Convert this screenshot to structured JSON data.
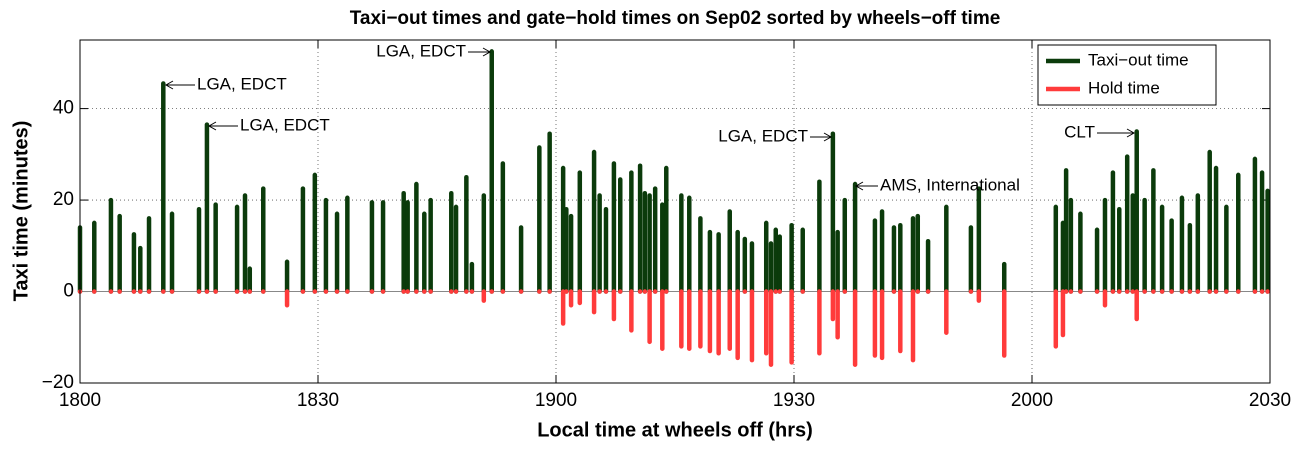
{
  "chart_data": {
    "type": "bar",
    "title": "Taxi−out times and gate−hold times on Sep02 sorted by wheels−off time",
    "x_label": "Local time at wheels off (hrs)",
    "y_label": "Taxi time (minutes)",
    "xlim": [
      1080,
      1230
    ],
    "xticks": [
      {
        "value": 1080,
        "label": "1800"
      },
      {
        "value": 1110,
        "label": "1830"
      },
      {
        "value": 1140,
        "label": "1900"
      },
      {
        "value": 1170,
        "label": "1930"
      },
      {
        "value": 1200,
        "label": "2000"
      },
      {
        "value": 1230,
        "label": "2030"
      }
    ],
    "ylim": [
      -20,
      55
    ],
    "yticks": [
      {
        "value": -20,
        "label": "−20"
      },
      0,
      20,
      40
    ],
    "grid": true,
    "legend": "northeast",
    "x": [
      1080.0,
      1081.8,
      1083.9,
      1085.0,
      1086.8,
      1087.6,
      1088.7,
      1090.5,
      1091.6,
      1095.0,
      1096.0,
      1097.1,
      1099.8,
      1100.8,
      1101.4,
      1103.1,
      1106.1,
      1108.1,
      1109.6,
      1111.0,
      1112.4,
      1113.7,
      1116.8,
      1118.2,
      1120.8,
      1121.3,
      1122.4,
      1123.4,
      1124.2,
      1126.8,
      1127.4,
      1128.7,
      1129.4,
      1130.9,
      1131.9,
      1133.3,
      1135.6,
      1137.9,
      1139.2,
      1140.9,
      1141.3,
      1141.9,
      1143.0,
      1144.8,
      1145.5,
      1146.3,
      1147.3,
      1148.1,
      1149.5,
      1150.6,
      1151.2,
      1151.8,
      1152.5,
      1153.4,
      1153.9,
      1155.8,
      1156.8,
      1158.2,
      1159.4,
      1160.5,
      1161.9,
      1162.9,
      1163.8,
      1164.7,
      1166.5,
      1167.1,
      1167.7,
      1168.2,
      1169.7,
      1171.1,
      1173.2,
      1174.9,
      1175.5,
      1176.4,
      1177.7,
      1180.2,
      1181.1,
      1182.6,
      1183.4,
      1185.0,
      1185.6,
      1186.9,
      1189.2,
      1192.3,
      1193.3,
      1196.5,
      1203.0,
      1203.9,
      1204.3,
      1204.9,
      1206.1,
      1208.2,
      1209.2,
      1210.2,
      1211.0,
      1212.0,
      1212.7,
      1213.2,
      1214.2,
      1215.3,
      1216.4,
      1217.6,
      1218.9,
      1219.9,
      1220.9,
      1222.4,
      1223.2,
      1224.5,
      1226.0,
      1228.1,
      1229.0,
      1229.7
    ],
    "series": [
      {
        "name": "Taxi−out time",
        "color": "#0b3b0b",
        "values": [
          14,
          15,
          20,
          16.5,
          12.5,
          9.5,
          16,
          45.5,
          17,
          18,
          36.5,
          19,
          18.5,
          21,
          5,
          22.5,
          6.5,
          22.5,
          25.5,
          20,
          17,
          20.5,
          19.5,
          19.5,
          21.5,
          19.5,
          23.5,
          17,
          20,
          21.5,
          18.5,
          25,
          6,
          21,
          52.5,
          28,
          14,
          31.5,
          34.5,
          27,
          18,
          16.5,
          26,
          30.5,
          21,
          18,
          28,
          24.5,
          26,
          27.5,
          21.5,
          21,
          22.5,
          19,
          27,
          21,
          20.5,
          16,
          13,
          12.5,
          17.5,
          13,
          11.5,
          10.5,
          15,
          10.5,
          13.5,
          12,
          14.5,
          13.5,
          24,
          34.5,
          13,
          20,
          23.5,
          15.5,
          17.5,
          14,
          14.5,
          16,
          16.5,
          11,
          18.5,
          14,
          22.5,
          6,
          18.5,
          15,
          26.5,
          20,
          17,
          13.5,
          20,
          26,
          18,
          29.5,
          21,
          35,
          20,
          26.5,
          18.5,
          15.5,
          20.5,
          14.5,
          21,
          30.5,
          27,
          18.5,
          25.5,
          29,
          26,
          22
        ]
      },
      {
        "name": "Hold time",
        "color": "#ff3b3b",
        "values": [
          0,
          0,
          0,
          0,
          0,
          0,
          0,
          0,
          0,
          0,
          0,
          0,
          0,
          0,
          0,
          0,
          -3,
          0,
          0,
          0,
          0,
          0,
          0,
          0,
          0,
          0,
          0,
          0,
          0,
          0,
          0,
          0,
          0,
          -2,
          0,
          0,
          0,
          0,
          0,
          -7,
          0,
          -3,
          -2.5,
          -4.5,
          0,
          0,
          -6,
          0,
          -8.5,
          0,
          0,
          -11,
          0,
          -12.5,
          0,
          -12,
          -12.5,
          -12,
          -13,
          -13.5,
          -12.5,
          -14.5,
          0,
          -15,
          -13.5,
          -16,
          0,
          0,
          -15.5,
          0,
          -13.5,
          -6,
          -10,
          0,
          -16,
          -14,
          -14.5,
          0,
          -13,
          -15,
          0,
          0,
          -9,
          0,
          -2,
          -14,
          -12,
          -9.5,
          0,
          0,
          0,
          0,
          -3,
          0,
          0,
          0,
          0,
          -6,
          0,
          0,
          0,
          0,
          0,
          0,
          0,
          0,
          0,
          0,
          0,
          0,
          0,
          0
        ]
      }
    ],
    "annotations": [
      "LGA, EDCT",
      "LGA, EDCT",
      "LGA, EDCT",
      "LGA, EDCT",
      "AMS, International",
      "CLT"
    ]
  }
}
